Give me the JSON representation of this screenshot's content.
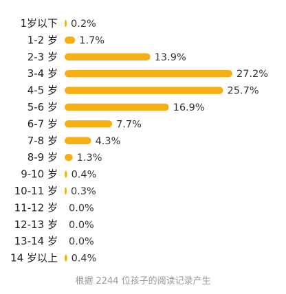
{
  "chart_data": {
    "type": "bar",
    "orientation": "horizontal",
    "categories": [
      "1岁以下",
      "1-2 岁",
      "2-3 岁",
      "3-4 岁",
      "4-5 岁",
      "5-6 岁",
      "6-7 岁",
      "7-8 岁",
      "8-9 岁",
      "9-10 岁",
      "10-11 岁",
      "11-12 岁",
      "12-13 岁",
      "13-14 岁",
      "14 岁以上"
    ],
    "values": [
      0.2,
      1.7,
      13.9,
      27.2,
      25.7,
      16.9,
      7.7,
      4.3,
      1.3,
      0.4,
      0.3,
      0.0,
      0.0,
      0.0,
      0.4
    ],
    "value_labels": [
      "0.2%",
      "1.7%",
      "13.9%",
      "27.2%",
      "25.7%",
      "16.9%",
      "7.7%",
      "4.3%",
      "1.3%",
      "0.4%",
      "0.3%",
      "0.0%",
      "0.0%",
      "0.0%",
      "0.4%"
    ],
    "bar_color": "#F7B014",
    "grid": false,
    "legend": "none"
  },
  "footnote": "根据 2244 位孩子的阅读记录产生"
}
